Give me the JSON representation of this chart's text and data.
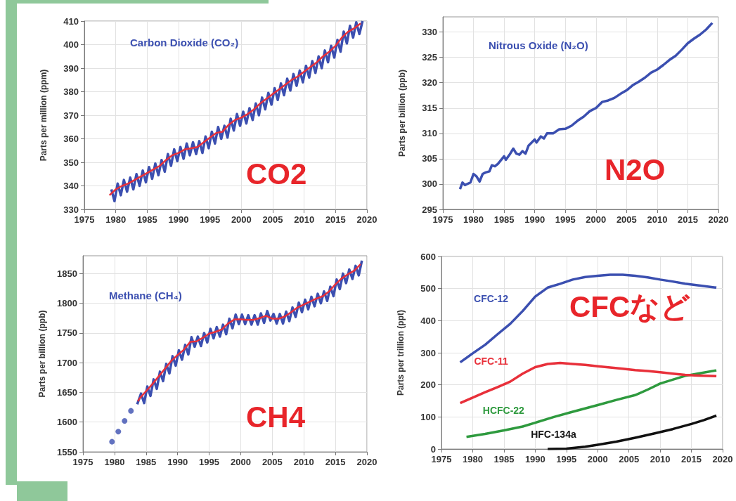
{
  "chart_data": [
    {
      "type": "line",
      "title": "Carbon Dioxide (CO₂)",
      "annotations": [
        "CO2"
      ],
      "ylabel": "Parts per million (ppm)",
      "xlim": [
        1975,
        2020
      ],
      "xticks": [
        1975,
        1980,
        1985,
        1990,
        1995,
        2000,
        2005,
        2010,
        2015,
        2020
      ],
      "ylim": [
        330,
        410
      ],
      "yticks": [
        330,
        340,
        350,
        360,
        370,
        380,
        390,
        400,
        410
      ],
      "grid": true,
      "legend": false,
      "series": [
        {
          "color": "#3b4fb0",
          "x": [
            1979.3,
            1979.8,
            1980.3,
            1980.8,
            1981.3,
            1981.8,
            1982.3,
            1982.8,
            1983.3,
            1983.8,
            1984.3,
            1984.8,
            1985.3,
            1985.8,
            1986.3,
            1986.8,
            1987.3,
            1987.8,
            1988.3,
            1988.8,
            1989.3,
            1989.8,
            1990.3,
            1990.8,
            1991.3,
            1991.8,
            1992.3,
            1992.8,
            1993.3,
            1993.8,
            1994.3,
            1994.8,
            1995.3,
            1995.8,
            1996.3,
            1996.8,
            1997.3,
            1997.8,
            1998.3,
            1998.8,
            1999.3,
            1999.8,
            2000.3,
            2000.8,
            2001.3,
            2001.8,
            2002.3,
            2002.8,
            2003.3,
            2003.8,
            2004.3,
            2004.8,
            2005.3,
            2005.8,
            2006.3,
            2006.8,
            2007.3,
            2007.8,
            2008.3,
            2008.8,
            2009.3,
            2009.8,
            2010.3,
            2010.8,
            2011.3,
            2011.8,
            2012.3,
            2012.8,
            2013.3,
            2013.8,
            2014.3,
            2014.8,
            2015.3,
            2015.8,
            2016.3,
            2016.8,
            2017.3,
            2017.8,
            2018.3,
            2018.8,
            2019.3
          ],
          "values": [
            338.5,
            333.5,
            341,
            336,
            342.5,
            337.5,
            343.5,
            338.5,
            345,
            340,
            346.5,
            341.5,
            348,
            343,
            349.5,
            344.5,
            351,
            346,
            353.5,
            348.5,
            355.5,
            350.5,
            356.5,
            351.5,
            358,
            353,
            358.5,
            353.5,
            359,
            354,
            361,
            356,
            363,
            358,
            365,
            360,
            365.5,
            360.5,
            368.5,
            363.5,
            370.5,
            365.5,
            371.5,
            366.5,
            373,
            368,
            375,
            370,
            377.5,
            372.5,
            379.5,
            374.5,
            381.5,
            376.5,
            383.5,
            378.5,
            385.5,
            380.5,
            387.5,
            382.5,
            389,
            384,
            391,
            386,
            393,
            388,
            395,
            390,
            397.5,
            392.5,
            399.5,
            394.5,
            402,
            397,
            405.5,
            400.5,
            408,
            403,
            409.5,
            404.5,
            410
          ]
        },
        {
          "color": "#e8303a",
          "x": [
            1979,
            1980,
            1981,
            1982,
            1983,
            1984,
            1985,
            1986,
            1987,
            1988,
            1989,
            1990,
            1991,
            1992,
            1993,
            1994,
            1995,
            1996,
            1997,
            1998,
            1999,
            2000,
            2001,
            2002,
            2003,
            2004,
            2005,
            2006,
            2007,
            2008,
            2009,
            2010,
            2011,
            2012,
            2013,
            2014,
            2015,
            2016,
            2017,
            2018,
            2019
          ],
          "values": [
            336,
            338.5,
            340,
            341,
            342.5,
            344,
            345.5,
            347,
            348.5,
            351,
            353,
            354,
            355.5,
            356,
            356.5,
            358.5,
            360.5,
            362.5,
            363,
            366,
            368,
            369,
            370.5,
            372.5,
            375,
            377,
            379,
            381,
            383,
            385,
            386.5,
            388.5,
            390.5,
            392.5,
            395,
            397,
            399.5,
            403,
            405.5,
            407,
            409
          ]
        }
      ]
    },
    {
      "type": "line",
      "title": "Nitrous Oxide (N₂O)",
      "annotations": [
        "N2O"
      ],
      "ylabel": "Parts per billion (ppb)",
      "xlim": [
        1975,
        2020
      ],
      "xticks": [
        1975,
        1980,
        1985,
        1990,
        1995,
        2000,
        2005,
        2010,
        2015,
        2020
      ],
      "ylim": [
        295,
        333
      ],
      "yticks": [
        295,
        300,
        305,
        310,
        315,
        320,
        325,
        330
      ],
      "grid": true,
      "legend": false,
      "series": [
        {
          "color": "#3b4fb0",
          "x": [
            1977.8,
            1978.2,
            1978.6,
            1979.5,
            1980,
            1980.5,
            1981,
            1981.5,
            1982,
            1982.6,
            1983,
            1983.5,
            1984,
            1985,
            1985.3,
            1986,
            1986.5,
            1987,
            1987.5,
            1988,
            1988.5,
            1989,
            1990,
            1990.3,
            1991,
            1991.5,
            1992,
            1993,
            1994,
            1995,
            1996,
            1997,
            1998,
            1999,
            2000,
            2001,
            2002,
            2003,
            2004,
            2005,
            2006,
            2007,
            2008,
            2009,
            2010,
            2011,
            2012,
            2013,
            2014,
            2015,
            2016,
            2017,
            2018,
            2019
          ],
          "values": [
            299,
            300.3,
            299.8,
            300.3,
            302,
            301.5,
            300.5,
            302,
            302.3,
            302.5,
            303.7,
            303.5,
            304,
            305.5,
            304.8,
            306,
            307,
            306,
            305.8,
            306.5,
            306,
            307.6,
            308.8,
            308.2,
            309.4,
            309,
            310,
            310,
            310.8,
            310.9,
            311.5,
            312.5,
            313.3,
            314.4,
            315,
            316.2,
            316.5,
            317,
            317.8,
            318.5,
            319.5,
            320.2,
            321,
            322,
            322.6,
            323.5,
            324.5,
            325.3,
            326.5,
            327.8,
            328.7,
            329.5,
            330.5,
            331.8
          ]
        }
      ]
    },
    {
      "type": "line",
      "title": "Methane (CH₄)",
      "annotations": [
        "CH4"
      ],
      "ylabel": "Parts per billion (ppb)",
      "xlim": [
        1975,
        2020
      ],
      "xticks": [
        1975,
        1980,
        1985,
        1990,
        1995,
        2000,
        2005,
        2010,
        2015,
        2020
      ],
      "ylim": [
        1550,
        1880
      ],
      "yticks": [
        1550,
        1600,
        1650,
        1700,
        1750,
        1800,
        1850
      ],
      "grid": true,
      "legend": false,
      "series": [
        {
          "type": "scatter",
          "color": "#3b4fb0",
          "x": [
            1979.6,
            1980.6,
            1981.6,
            1982.6
          ],
          "values": [
            1567,
            1584,
            1602,
            1619
          ]
        },
        {
          "color": "#3b4fb0",
          "x": [
            1983.6,
            1984.2,
            1984.7,
            1985.2,
            1985.7,
            1986.2,
            1986.7,
            1987.2,
            1987.7,
            1988.2,
            1988.7,
            1989.2,
            1989.7,
            1990.2,
            1990.7,
            1991.2,
            1991.7,
            1992.2,
            1992.7,
            1993.2,
            1993.7,
            1994.2,
            1994.7,
            1995.2,
            1995.7,
            1996.2,
            1996.7,
            1997.2,
            1997.7,
            1998.2,
            1998.7,
            1999.2,
            1999.7,
            2000.2,
            2000.7,
            2001.2,
            2001.7,
            2002.2,
            2002.7,
            2003.2,
            2003.7,
            2004.2,
            2004.7,
            2005.2,
            2005.7,
            2006.2,
            2006.7,
            2007.2,
            2007.7,
            2008.2,
            2008.7,
            2009.2,
            2009.7,
            2010.2,
            2010.7,
            2011.2,
            2011.7,
            2012.2,
            2012.7,
            2013.2,
            2013.7,
            2014.2,
            2014.7,
            2015.2,
            2015.7,
            2016.2,
            2016.7,
            2017.2,
            2017.7,
            2018.2,
            2018.7,
            2019.2
          ],
          "values": [
            1630,
            1648,
            1632,
            1660,
            1644,
            1672,
            1656,
            1685,
            1669,
            1698,
            1682,
            1711,
            1695,
            1721,
            1705,
            1730,
            1714,
            1743,
            1727,
            1744,
            1728,
            1750,
            1734,
            1757,
            1741,
            1760,
            1744,
            1764,
            1748,
            1774,
            1758,
            1781,
            1765,
            1781,
            1765,
            1780,
            1764,
            1780,
            1764,
            1783,
            1767,
            1787,
            1771,
            1782,
            1766,
            1782,
            1766,
            1786,
            1770,
            1793,
            1777,
            1801,
            1785,
            1806,
            1790,
            1811,
            1795,
            1816,
            1800,
            1820,
            1804,
            1828,
            1812,
            1840,
            1824,
            1850,
            1834,
            1857,
            1841,
            1863,
            1847,
            1872
          ]
        },
        {
          "color": "#e8303a",
          "x": [
            1983.7,
            1984,
            1985,
            1986,
            1987,
            1988,
            1989,
            1990,
            1991,
            1992,
            1993,
            1994,
            1995,
            1996,
            1997,
            1998,
            1999,
            2000,
            2001,
            2002,
            2003,
            2004,
            2005,
            2006,
            2007,
            2008,
            2009,
            2010,
            2011,
            2012,
            2013,
            2014,
            2015,
            2016,
            2017,
            2018,
            2019
          ],
          "values": [
            1635,
            1640,
            1652,
            1664,
            1677,
            1690,
            1703,
            1713,
            1722,
            1735,
            1736,
            1742,
            1749,
            1752,
            1756,
            1766,
            1773,
            1773,
            1772,
            1772,
            1775,
            1779,
            1774,
            1774,
            1778,
            1785,
            1793,
            1798,
            1803,
            1808,
            1812,
            1820,
            1832,
            1842,
            1849,
            1855,
            1866
          ]
        }
      ]
    },
    {
      "type": "line",
      "annotations": [
        "CFCなど"
      ],
      "ylabel": "Parts per trillion (ppt)",
      "xlim": [
        1975,
        2020
      ],
      "xticks": [
        1975,
        1980,
        1985,
        1990,
        1995,
        2000,
        2005,
        2010,
        2015,
        2020
      ],
      "ylim": [
        0,
        600
      ],
      "yticks": [
        0,
        100,
        200,
        300,
        400,
        500,
        600
      ],
      "grid": true,
      "legend": false,
      "series": [
        {
          "name": "CFC-12",
          "color": "#3b4fb0",
          "x": [
            1978,
            1980,
            1982,
            1984,
            1986,
            1988,
            1990,
            1992,
            1994,
            1996,
            1998,
            2000,
            2002,
            2004,
            2006,
            2008,
            2010,
            2012,
            2014,
            2016,
            2019
          ],
          "values": [
            270,
            298,
            325,
            358,
            390,
            430,
            475,
            503,
            515,
            528,
            536,
            540,
            543,
            543,
            540,
            535,
            528,
            522,
            515,
            510,
            503
          ]
        },
        {
          "name": "CFC-11",
          "color": "#e8303a",
          "x": [
            1978,
            1980,
            1982,
            1984,
            1986,
            1988,
            1990,
            1992,
            1994,
            1996,
            1998,
            2000,
            2002,
            2004,
            2006,
            2008,
            2010,
            2012,
            2014,
            2016,
            2019
          ],
          "values": [
            143,
            160,
            177,
            193,
            210,
            235,
            255,
            265,
            268,
            265,
            262,
            258,
            254,
            250,
            246,
            243,
            239,
            235,
            231,
            229,
            227
          ]
        },
        {
          "name": "HCFC-22",
          "color": "#2e9a3e",
          "x": [
            1979,
            1982,
            1985,
            1988,
            1990,
            1993,
            1996,
            2000,
            2003,
            2006,
            2008,
            2010,
            2012,
            2014,
            2016,
            2019
          ],
          "values": [
            38,
            47,
            58,
            70,
            82,
            100,
            116,
            137,
            153,
            168,
            185,
            204,
            216,
            228,
            235,
            245
          ]
        },
        {
          "name": "HFC-134a",
          "color": "#111111",
          "x": [
            1992,
            1995,
            1998,
            2000,
            2003,
            2006,
            2009,
            2012,
            2015,
            2017,
            2019
          ],
          "values": [
            0,
            1,
            7,
            13,
            23,
            35,
            48,
            62,
            78,
            90,
            104
          ]
        }
      ]
    }
  ]
}
